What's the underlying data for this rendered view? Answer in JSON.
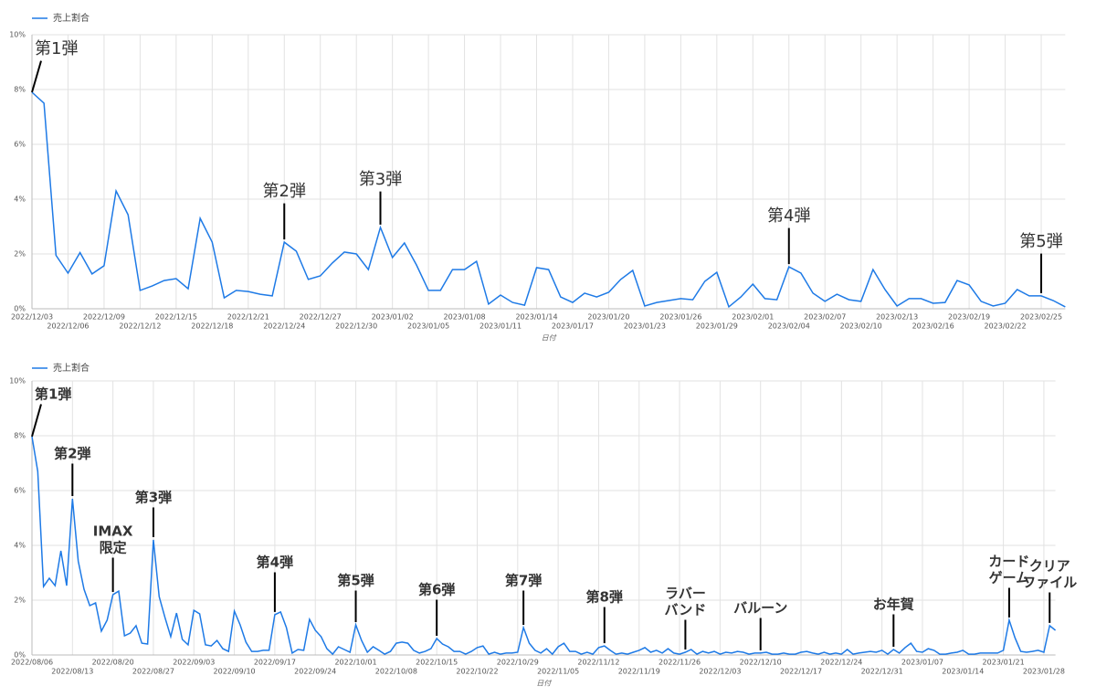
{
  "chart_data": [
    {
      "type": "line",
      "xlabel": "日付",
      "grid": true,
      "ylim": [
        0,
        10
      ],
      "yticks": [
        {
          "value": 0,
          "label": "0%"
        },
        {
          "value": 2,
          "label": "2%"
        },
        {
          "value": 4,
          "label": "4%"
        },
        {
          "value": 6,
          "label": "6%"
        },
        {
          "value": 8,
          "label": "8%"
        },
        {
          "value": 10,
          "label": "10%"
        }
      ],
      "categories": [
        "2022/12/03",
        null,
        null,
        "2022/12/06",
        null,
        null,
        "2022/12/09",
        null,
        null,
        "2022/12/12",
        null,
        null,
        "2022/12/15",
        null,
        null,
        "2022/12/18",
        null,
        null,
        "2022/12/21",
        null,
        null,
        "2022/12/24",
        null,
        null,
        "2022/12/27",
        null,
        null,
        "2022/12/30",
        null,
        null,
        "2023/01/02",
        null,
        null,
        "2023/01/05",
        null,
        null,
        "2023/01/08",
        null,
        null,
        "2023/01/11",
        null,
        null,
        "2023/01/14",
        null,
        null,
        "2023/01/17",
        null,
        null,
        "2023/01/20",
        null,
        null,
        "2023/01/23",
        null,
        null,
        "2023/01/26",
        null,
        null,
        "2023/01/29",
        null,
        null,
        "2023/02/01",
        null,
        null,
        "2023/02/04",
        null,
        null,
        "2023/02/07",
        null,
        null,
        "2023/02/10",
        null,
        null,
        "2023/02/13",
        null,
        null,
        "2023/02/16",
        null,
        null,
        "2023/02/19",
        null,
        null,
        "2023/02/22",
        null,
        null,
        "2023/02/25",
        null,
        null
      ],
      "series": [
        {
          "name": "売上割合",
          "color": "#1e7ae6",
          "values": [
            7.9,
            7.5,
            1.95,
            1.3,
            2.05,
            1.27,
            1.57,
            4.3,
            3.43,
            0.67,
            0.83,
            1.03,
            1.1,
            0.73,
            3.3,
            2.43,
            0.4,
            0.67,
            0.63,
            0.53,
            0.47,
            2.43,
            2.1,
            1.07,
            1.2,
            1.67,
            2.07,
            2.0,
            1.43,
            2.97,
            1.87,
            2.4,
            1.6,
            0.67,
            0.67,
            1.43,
            1.43,
            1.73,
            0.17,
            0.5,
            0.23,
            0.13,
            1.5,
            1.43,
            0.43,
            0.23,
            0.57,
            0.43,
            0.6,
            1.07,
            1.4,
            0.1,
            0.23,
            0.3,
            0.37,
            0.33,
            1.0,
            1.33,
            0.07,
            0.43,
            0.9,
            0.37,
            0.33,
            1.53,
            1.3,
            0.57,
            0.27,
            0.53,
            0.33,
            0.27,
            1.43,
            0.7,
            0.1,
            0.37,
            0.37,
            0.2,
            0.23,
            1.03,
            0.87,
            0.27,
            0.1,
            0.2,
            0.7,
            0.47,
            0.47,
            0.3,
            0.07
          ]
        }
      ],
      "annotations": [
        [
          "第1弾"
        ],
        [
          "第2弾"
        ],
        [
          "第3弾"
        ],
        [
          "第4弾"
        ],
        [
          "第5弾"
        ]
      ]
    },
    {
      "type": "line",
      "xlabel": "日付",
      "grid": true,
      "ylim": [
        0,
        10
      ],
      "yticks": [
        {
          "value": 0,
          "label": "0%"
        },
        {
          "value": 2,
          "label": "2%"
        },
        {
          "value": 4,
          "label": "4%"
        },
        {
          "value": 6,
          "label": "6%"
        },
        {
          "value": 8,
          "label": "8%"
        },
        {
          "value": 10,
          "label": "10%"
        }
      ],
      "categories": [
        "2022/08/06",
        null,
        null,
        null,
        null,
        null,
        null,
        "2022/08/13",
        null,
        null,
        null,
        null,
        null,
        null,
        "2022/08/20",
        null,
        null,
        null,
        null,
        null,
        null,
        "2022/08/27",
        null,
        null,
        null,
        null,
        null,
        null,
        "2022/09/03",
        null,
        null,
        null,
        null,
        null,
        null,
        "2022/09/10",
        null,
        null,
        null,
        null,
        null,
        null,
        "2022/09/17",
        null,
        null,
        null,
        null,
        null,
        null,
        "2022/09/24",
        null,
        null,
        null,
        null,
        null,
        null,
        "2022/10/01",
        null,
        null,
        null,
        null,
        null,
        null,
        "2022/10/08",
        null,
        null,
        null,
        null,
        null,
        null,
        "2022/10/15",
        null,
        null,
        null,
        null,
        null,
        null,
        "2022/10/22",
        null,
        null,
        null,
        null,
        null,
        null,
        "2022/10/29",
        null,
        null,
        null,
        null,
        null,
        null,
        "2022/11/05",
        null,
        null,
        null,
        null,
        null,
        null,
        "2022/11/12",
        null,
        null,
        null,
        null,
        null,
        null,
        "2022/11/19",
        null,
        null,
        null,
        null,
        null,
        null,
        "2022/11/26",
        null,
        null,
        null,
        null,
        null,
        null,
        "2022/12/03",
        null,
        null,
        null,
        null,
        null,
        null,
        "2022/12/10",
        null,
        null,
        null,
        null,
        null,
        null,
        "2022/12/17",
        null,
        null,
        null,
        null,
        null,
        null,
        "2022/12/24",
        null,
        null,
        null,
        null,
        null,
        null,
        "2022/12/31",
        null,
        null,
        null,
        null,
        null,
        null,
        "2023/01/07",
        null,
        null,
        null,
        null,
        null,
        null,
        "2023/01/14",
        null,
        null,
        null,
        null,
        null,
        null,
        "2023/01/21",
        null,
        null,
        null,
        null,
        null,
        null,
        "2023/01/28",
        null,
        null
      ],
      "series": [
        {
          "name": "売上割合",
          "color": "#1e7ae6",
          "values": [
            7.97,
            6.7,
            2.5,
            2.8,
            2.53,
            3.8,
            2.53,
            5.7,
            3.43,
            2.4,
            1.8,
            1.9,
            0.87,
            1.27,
            2.2,
            2.33,
            0.7,
            0.8,
            1.07,
            0.43,
            0.4,
            4.2,
            2.13,
            1.37,
            0.67,
            1.53,
            0.57,
            0.37,
            1.63,
            1.5,
            0.37,
            0.33,
            0.53,
            0.23,
            0.13,
            1.6,
            1.1,
            0.47,
            0.13,
            0.13,
            0.17,
            0.17,
            1.47,
            1.57,
            1.0,
            0.07,
            0.2,
            0.17,
            1.3,
            0.9,
            0.67,
            0.23,
            0.03,
            0.3,
            0.2,
            0.1,
            1.1,
            0.53,
            0.1,
            0.3,
            0.17,
            0.03,
            0.13,
            0.43,
            0.47,
            0.43,
            0.17,
            0.07,
            0.13,
            0.23,
            0.6,
            0.4,
            0.3,
            0.13,
            0.13,
            0.03,
            0.13,
            0.27,
            0.33,
            0.03,
            0.1,
            0.03,
            0.07,
            0.07,
            0.1,
            1.0,
            0.43,
            0.17,
            0.07,
            0.23,
            0.03,
            0.3,
            0.43,
            0.13,
            0.13,
            0.03,
            0.1,
            0.03,
            0.27,
            0.33,
            0.17,
            0.03,
            0.07,
            0.03,
            0.1,
            0.17,
            0.27,
            0.1,
            0.17,
            0.07,
            0.23,
            0.07,
            0.03,
            0.1,
            0.2,
            0.03,
            0.13,
            0.07,
            0.13,
            0.03,
            0.1,
            0.07,
            0.13,
            0.1,
            0.03,
            0.07,
            0.07,
            0.1,
            0.03,
            0.03,
            0.07,
            0.03,
            0.03,
            0.1,
            0.13,
            0.07,
            0.03,
            0.1,
            0.03,
            0.07,
            0.03,
            0.2,
            0.03,
            0.07,
            0.1,
            0.13,
            0.1,
            0.17,
            0.03,
            0.2,
            0.07,
            0.27,
            0.43,
            0.13,
            0.1,
            0.23,
            0.17,
            0.03,
            0.03,
            0.07,
            0.1,
            0.17,
            0.03,
            0.03,
            0.07,
            0.07,
            0.07,
            0.07,
            0.17,
            1.27,
            0.63,
            0.13,
            0.1,
            0.13,
            0.17,
            0.1,
            1.07,
            0.9
          ]
        }
      ],
      "annotations": [
        [
          "第1弾"
        ],
        [
          "第2弾"
        ],
        [
          "IMAX",
          "限定"
        ],
        [
          "第3弾"
        ],
        [
          "第4弾"
        ],
        [
          "第5弾"
        ],
        [
          "第6弾"
        ],
        [
          "第7弾"
        ],
        [
          "第8弾"
        ],
        [
          "ラバー",
          "バンド"
        ],
        [
          "バルーン"
        ],
        [
          "お年賀"
        ],
        [
          "カード",
          "ゲーム"
        ],
        [
          "クリア",
          "ファイル"
        ]
      ]
    }
  ]
}
